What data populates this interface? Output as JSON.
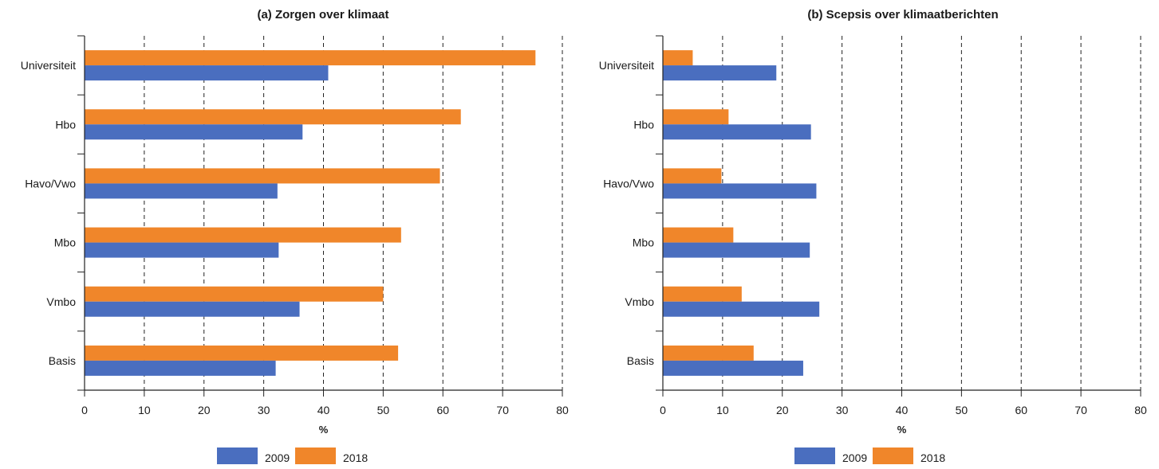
{
  "chart_data": [
    {
      "type": "bar",
      "orientation": "horizontal",
      "title": "(a) Zorgen over klimaat",
      "xlabel": "%",
      "categories": [
        "Universiteit",
        "Hbo",
        "Havo/Vwo",
        "Mbo",
        "Vmbo",
        "Basis"
      ],
      "series": [
        {
          "name": "2018",
          "values": [
            75.5,
            63,
            59.5,
            53,
            50,
            52.5
          ]
        },
        {
          "name": "2009",
          "values": [
            40.8,
            36.5,
            32.3,
            32.5,
            36,
            32
          ]
        }
      ],
      "xlim": [
        0,
        80
      ],
      "xticks": [
        "0",
        "10",
        "20",
        "30",
        "40",
        "50",
        "60",
        "70",
        "80"
      ],
      "grid": "vertical dashed",
      "legend": "bottom"
    },
    {
      "type": "bar",
      "orientation": "horizontal",
      "title": "(b) Scepsis over klimaatberichten",
      "xlabel": "%",
      "categories": [
        "Universiteit",
        "Hbo",
        "Havo/Vwo",
        "Mbo",
        "Vmbo",
        "Basis"
      ],
      "series": [
        {
          "name": "2018",
          "values": [
            5,
            11,
            9.8,
            11.8,
            13.2,
            15.2
          ]
        },
        {
          "name": "2009",
          "values": [
            19,
            24.8,
            25.7,
            24.6,
            26.2,
            23.5
          ]
        }
      ],
      "xlim": [
        0,
        80
      ],
      "xticks": [
        "0",
        "10",
        "20",
        "30",
        "40",
        "50",
        "60",
        "70",
        "80"
      ],
      "grid": "vertical dashed",
      "legend": "bottom"
    }
  ],
  "colors": {
    "2009": "#4a6ebf",
    "2018": "#f0862a"
  },
  "legend": [
    {
      "label": "2009",
      "color": "#4a6ebf"
    },
    {
      "label": "2018",
      "color": "#f0862a"
    }
  ]
}
